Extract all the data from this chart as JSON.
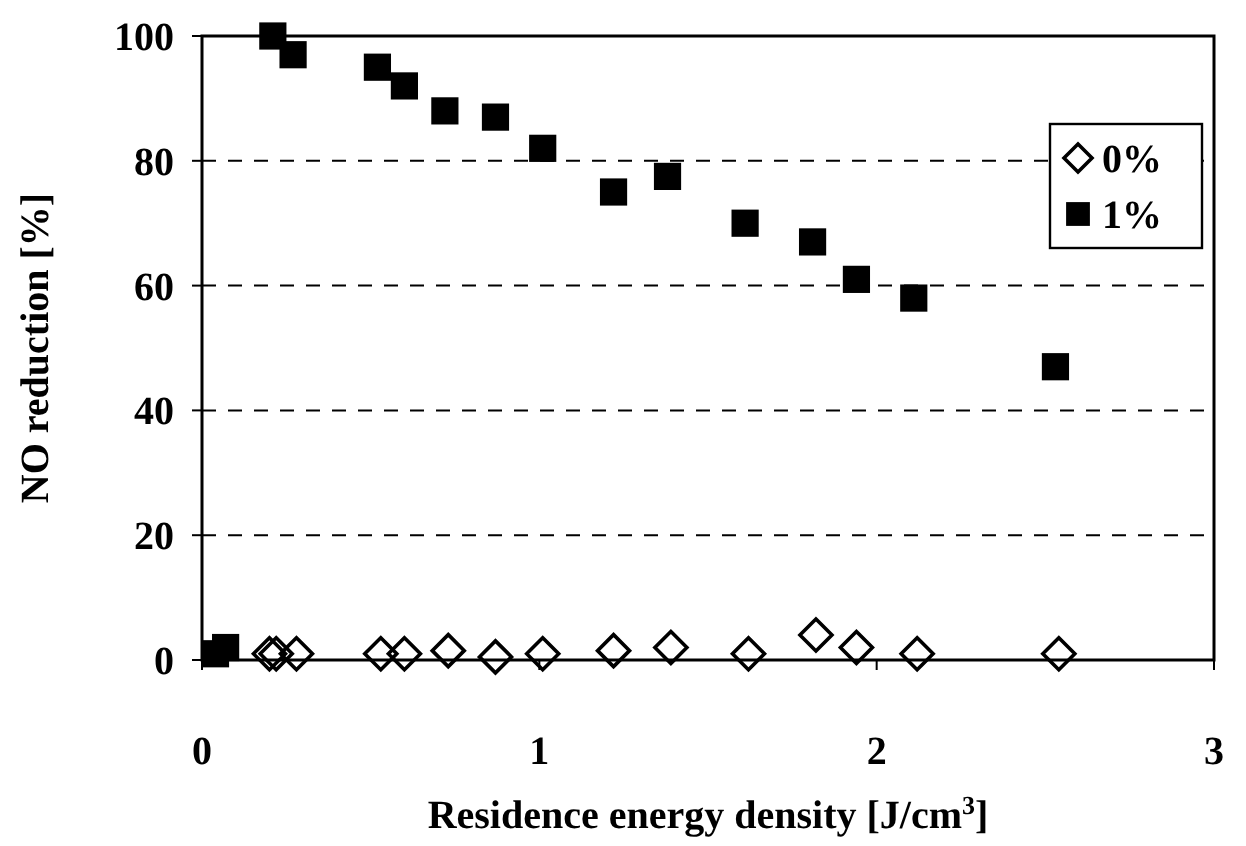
{
  "chart_data": {
    "type": "scatter",
    "xlabel": "Residence energy density [J/cm$^{3}$]",
    "ylabel": "NO reduction [%]",
    "xlim": [
      0,
      3
    ],
    "xticks": [
      0,
      1,
      2,
      3
    ],
    "ylim": [
      0,
      100
    ],
    "yticks": [
      0,
      20,
      40,
      60,
      80,
      100
    ],
    "grid": "y",
    "legend": "top right",
    "series": [
      {
        "name": "0%",
        "color": "#000000",
        "marker": "diamond",
        "x": [
          0.2,
          0.22,
          0.28,
          0.53,
          0.6,
          0.73,
          0.87,
          1.01,
          1.22,
          1.39,
          1.62,
          1.82,
          1.94,
          2.12,
          2.54
        ],
        "values": [
          1,
          1,
          1,
          1,
          1,
          1.5,
          0.5,
          1,
          1.5,
          2,
          1,
          4,
          2,
          1,
          1
        ]
      },
      {
        "name": "1%",
        "color": "#000000",
        "marker": "square",
        "x": [
          0.04,
          0.07,
          0.21,
          0.27,
          0.52,
          0.6,
          0.72,
          0.87,
          1.01,
          1.22,
          1.38,
          1.61,
          1.81,
          1.94,
          2.11,
          2.53
        ],
        "values": [
          1,
          2,
          100,
          97,
          95,
          92,
          88,
          87,
          82,
          75,
          77.5,
          70,
          67,
          61,
          58,
          47
        ]
      }
    ]
  }
}
